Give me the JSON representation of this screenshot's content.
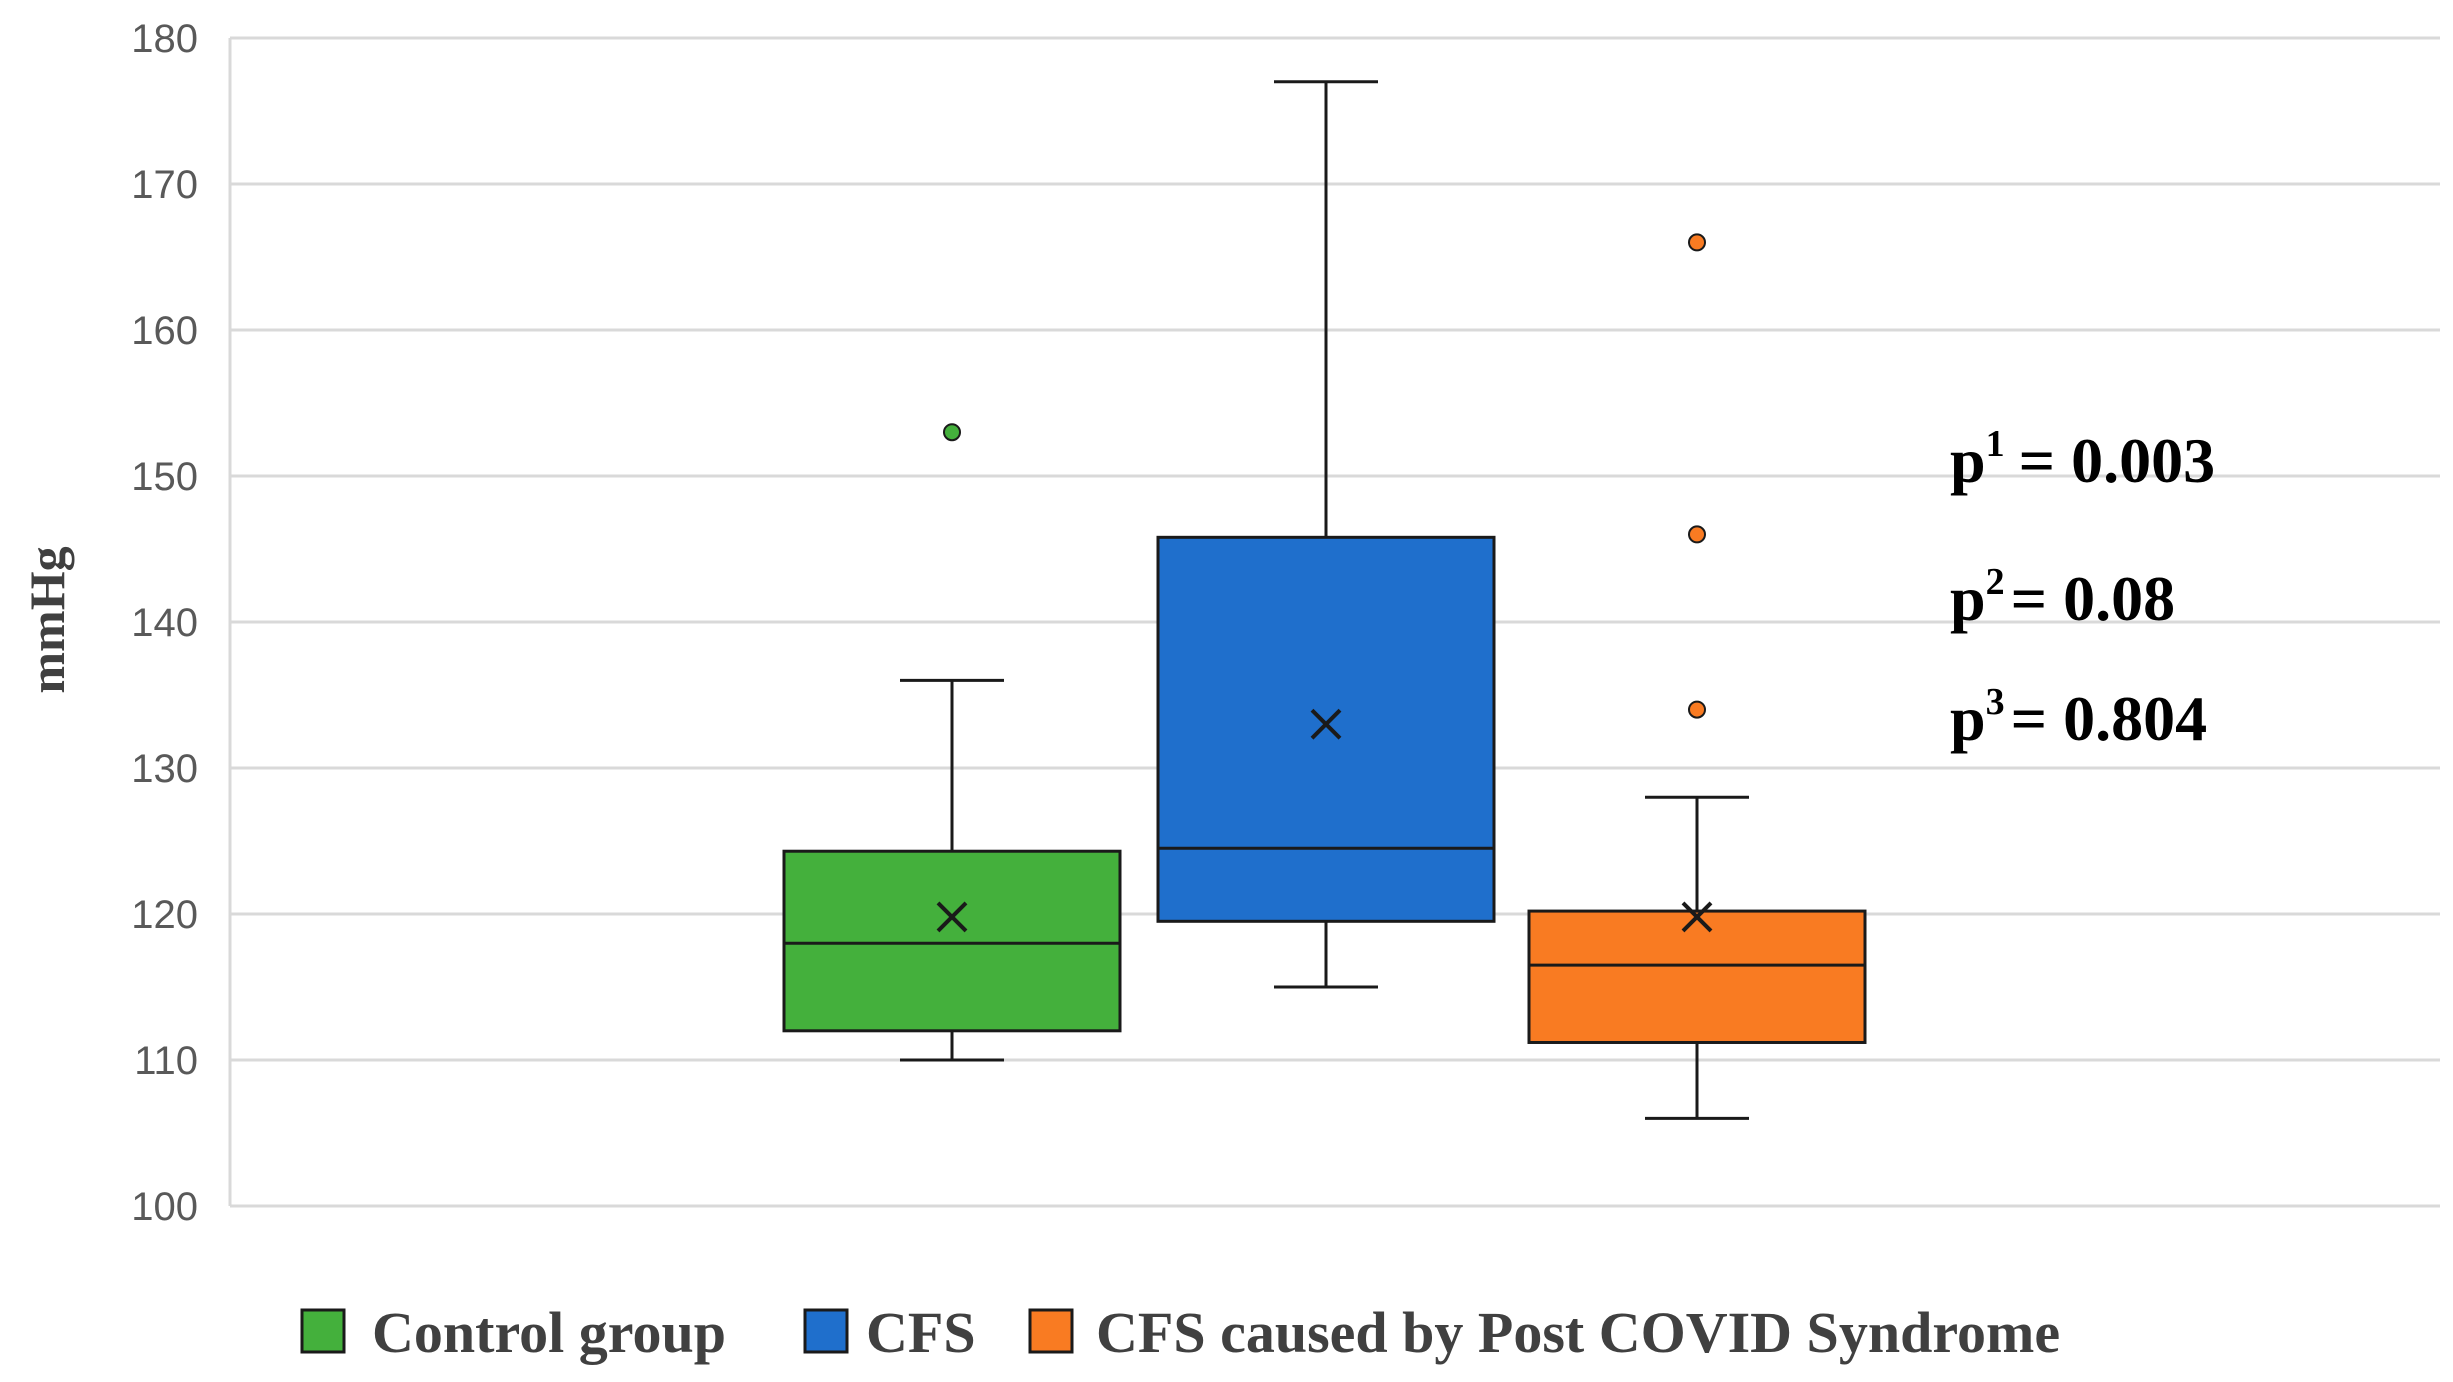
{
  "chart_data": {
    "type": "box",
    "title": "",
    "xlabel": "",
    "ylabel": "mmHg",
    "ylim": [
      100,
      180
    ],
    "yticks": [
      100,
      110,
      120,
      130,
      140,
      150,
      160,
      170,
      180
    ],
    "grid": true,
    "legend_position": "bottom",
    "series": [
      {
        "name": "Control group",
        "color": "#44b03c",
        "whisker_low": 110,
        "q1": 112,
        "median": 118,
        "q3": 124.3,
        "whisker_high": 136,
        "mean": 119.8,
        "outliers": [
          153
        ]
      },
      {
        "name": "CFS",
        "color": "#1f6fcc",
        "whisker_low": 115,
        "q1": 119.5,
        "median": 124.5,
        "q3": 145.8,
        "whisker_high": 177,
        "mean": 133,
        "outliers": []
      },
      {
        "name": "CFS caused by Post COVID Syndrome",
        "color": "#f97b22",
        "whisker_low": 106,
        "q1": 111.2,
        "median": 116.5,
        "q3": 120.2,
        "whisker_high": 128,
        "mean": 119.8,
        "outliers": [
          134,
          146,
          166
        ]
      }
    ],
    "annotations": [
      {
        "base": "p",
        "sup": "1",
        "text": "= 0.003"
      },
      {
        "base": "p",
        "sup": "2",
        "text": "= 0.08"
      },
      {
        "base": "p",
        "sup": "3",
        "text": "= 0.804"
      }
    ]
  }
}
